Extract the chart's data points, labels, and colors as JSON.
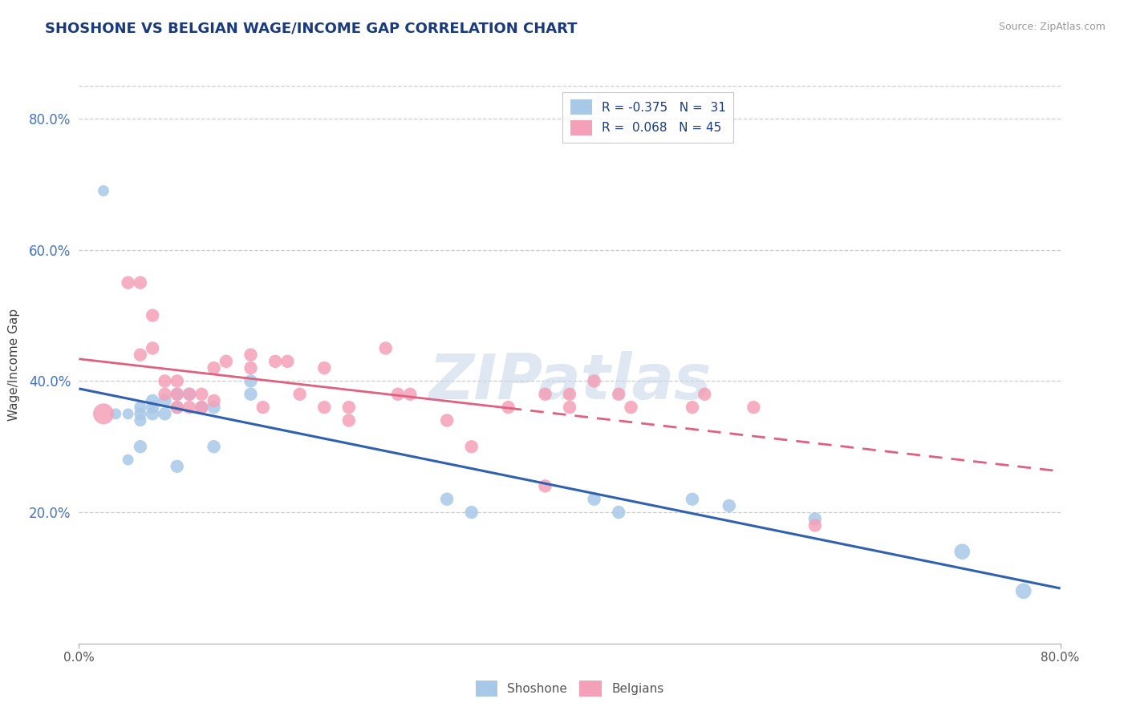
{
  "title": "SHOSHONE VS BELGIAN WAGE/INCOME GAP CORRELATION CHART",
  "source": "Source: ZipAtlas.com",
  "xlabel_ticks_labels": [
    "0.0%",
    "80.0%"
  ],
  "xlabel_ticks_vals": [
    0.0,
    0.8
  ],
  "ylabel_ticks_labels": [
    "20.0%",
    "40.0%",
    "60.0%",
    "80.0%"
  ],
  "ylabel_ticks_vals": [
    0.2,
    0.4,
    0.6,
    0.8
  ],
  "shoshone_color": "#a8c8e8",
  "belgians_color": "#f4a0b8",
  "shoshone_line_color": "#3060b0",
  "belgians_line_color": "#e06080",
  "legend_label_shoshone": "Shoshone",
  "legend_label_belgians": "Belgians",
  "R_shoshone": -0.375,
  "N_shoshone": 31,
  "R_belgians": 0.068,
  "N_belgians": 45,
  "shoshone_x": [
    0.02,
    0.03,
    0.04,
    0.04,
    0.05,
    0.05,
    0.05,
    0.05,
    0.06,
    0.06,
    0.06,
    0.07,
    0.07,
    0.08,
    0.08,
    0.08,
    0.09,
    0.1,
    0.11,
    0.11,
    0.14,
    0.14,
    0.3,
    0.32,
    0.42,
    0.44,
    0.5,
    0.53,
    0.6,
    0.72,
    0.77
  ],
  "shoshone_y": [
    0.69,
    0.35,
    0.35,
    0.28,
    0.36,
    0.35,
    0.34,
    0.3,
    0.37,
    0.36,
    0.35,
    0.37,
    0.35,
    0.38,
    0.36,
    0.27,
    0.38,
    0.36,
    0.36,
    0.3,
    0.4,
    0.38,
    0.22,
    0.2,
    0.22,
    0.2,
    0.22,
    0.21,
    0.19,
    0.14,
    0.08
  ],
  "shoshone_sizes": [
    100,
    100,
    100,
    100,
    120,
    120,
    120,
    140,
    140,
    140,
    140,
    140,
    140,
    140,
    140,
    140,
    140,
    140,
    140,
    140,
    140,
    140,
    140,
    140,
    140,
    140,
    140,
    140,
    140,
    200,
    200
  ],
  "belgians_x": [
    0.02,
    0.04,
    0.05,
    0.05,
    0.06,
    0.06,
    0.07,
    0.07,
    0.08,
    0.08,
    0.08,
    0.09,
    0.09,
    0.1,
    0.1,
    0.11,
    0.11,
    0.12,
    0.14,
    0.14,
    0.15,
    0.16,
    0.17,
    0.18,
    0.2,
    0.2,
    0.22,
    0.22,
    0.25,
    0.26,
    0.27,
    0.3,
    0.32,
    0.35,
    0.38,
    0.38,
    0.4,
    0.4,
    0.42,
    0.44,
    0.45,
    0.5,
    0.51,
    0.55,
    0.6
  ],
  "belgians_y": [
    0.35,
    0.55,
    0.55,
    0.44,
    0.5,
    0.45,
    0.4,
    0.38,
    0.4,
    0.38,
    0.36,
    0.38,
    0.36,
    0.38,
    0.36,
    0.42,
    0.37,
    0.43,
    0.44,
    0.42,
    0.36,
    0.43,
    0.43,
    0.38,
    0.42,
    0.36,
    0.36,
    0.34,
    0.45,
    0.38,
    0.38,
    0.34,
    0.3,
    0.36,
    0.38,
    0.24,
    0.38,
    0.36,
    0.4,
    0.38,
    0.36,
    0.36,
    0.38,
    0.36,
    0.18
  ],
  "belgians_sizes": [
    350,
    140,
    140,
    140,
    140,
    140,
    140,
    140,
    140,
    140,
    140,
    140,
    140,
    140,
    140,
    140,
    140,
    140,
    140,
    140,
    140,
    140,
    140,
    140,
    140,
    140,
    140,
    140,
    140,
    140,
    140,
    140,
    140,
    140,
    140,
    140,
    140,
    140,
    140,
    140,
    140,
    140,
    140,
    140,
    140
  ],
  "bg_color": "#ffffff",
  "grid_color": "#cccccc",
  "watermark": "ZIPatlas",
  "watermark_color": "#c8d8ea",
  "title_color": "#1a3a7a",
  "source_color": "#999999",
  "ylabel_color": "#4472c4",
  "tick_color": "#555555"
}
